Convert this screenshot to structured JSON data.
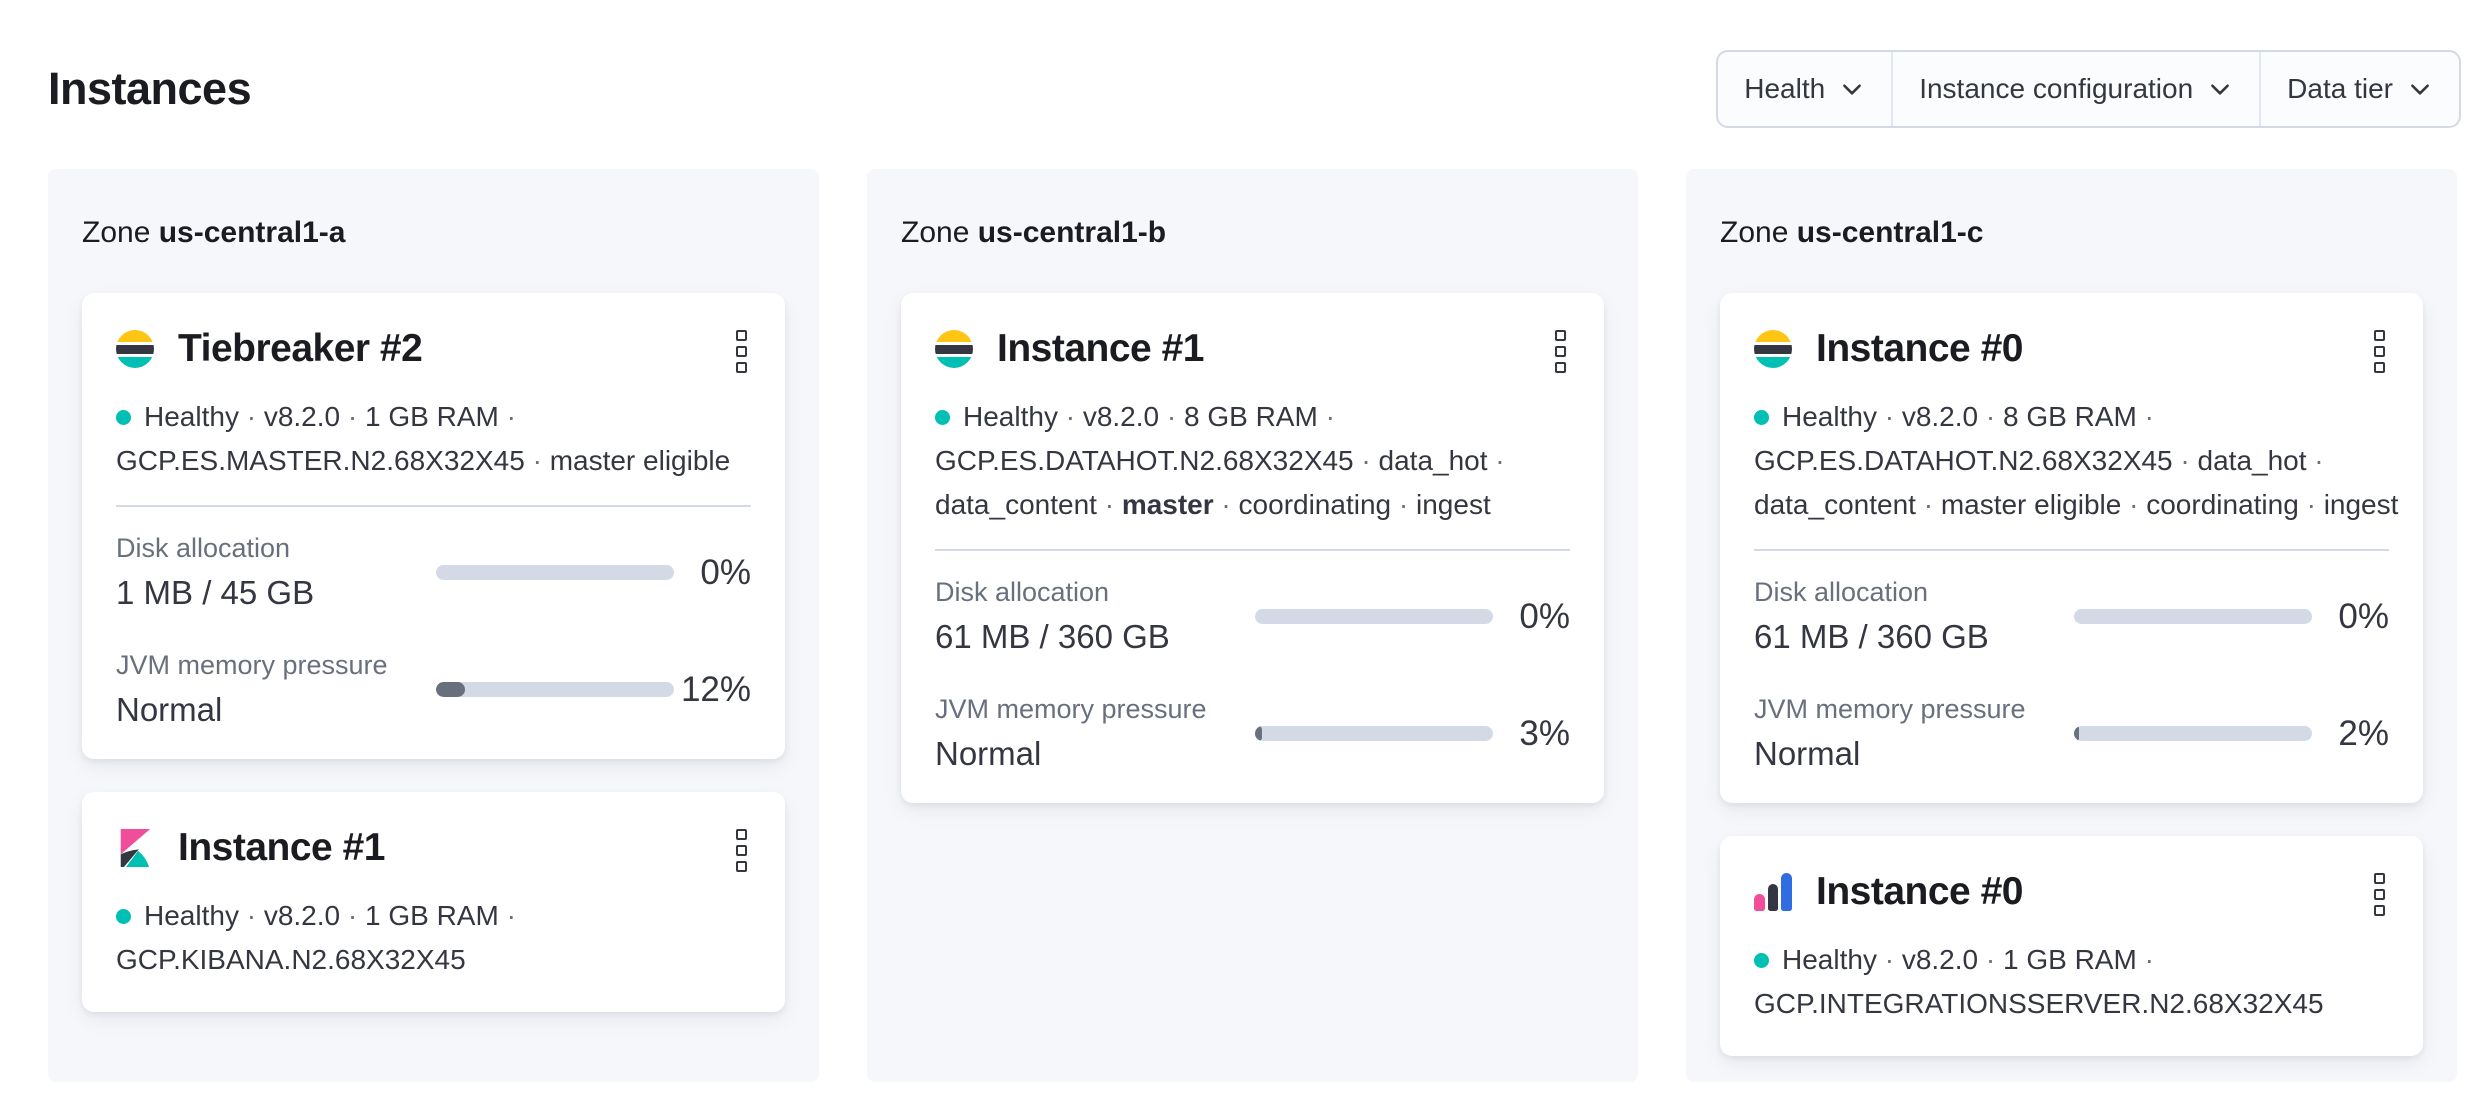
{
  "page": {
    "title": "Instances"
  },
  "filters": [
    {
      "id": "health",
      "label": "Health"
    },
    {
      "id": "instance-configuration",
      "label": "Instance configuration"
    },
    {
      "id": "data-tier",
      "label": "Data tier"
    }
  ],
  "colors": {
    "health_ok": "#00BFB3",
    "logo_yellow": "#FEC514",
    "logo_dark": "#343741",
    "logo_teal": "#00BFB3",
    "logo_pink": "#F04E98",
    "logo_blue": "#2F6DE0",
    "bar_track": "#D3DAE6",
    "bar_fill": "#69707D",
    "zone_panel_bg": "#F5F7FA"
  },
  "zones": [
    {
      "label": "Zone",
      "name": "us-central1-a",
      "cards": [
        {
          "logo": "elasticsearch",
          "title": "Tiebreaker #2",
          "meta_lines": [
            [
              {
                "t": "Healthy"
              },
              {
                "t": " · ",
                "sep": true
              },
              {
                "t": "v8.2.0"
              },
              {
                "t": " · ",
                "sep": true
              },
              {
                "t": "1 GB RAM"
              },
              {
                "t": " · ",
                "sep": true
              }
            ],
            [
              {
                "t": "GCP.ES.MASTER.N2.68X32X45"
              },
              {
                "t": " · ",
                "sep": true
              },
              {
                "t": "master eligible"
              }
            ]
          ],
          "metrics": [
            {
              "label": "Disk allocation",
              "value": "1 MB / 45 GB",
              "percent": 0,
              "percent_label": "0%"
            },
            {
              "label": "JVM memory pressure",
              "value": "Normal",
              "percent": 12,
              "percent_label": "12%"
            }
          ]
        },
        {
          "logo": "kibana",
          "title": "Instance #1",
          "meta_lines": [
            [
              {
                "t": "Healthy"
              },
              {
                "t": " · ",
                "sep": true
              },
              {
                "t": "v8.2.0"
              },
              {
                "t": " · ",
                "sep": true
              },
              {
                "t": "1 GB RAM"
              },
              {
                "t": " · ",
                "sep": true
              }
            ],
            [
              {
                "t": "GCP.KIBANA.N2.68X32X45"
              }
            ]
          ],
          "metrics": []
        }
      ]
    },
    {
      "label": "Zone",
      "name": "us-central1-b",
      "cards": [
        {
          "logo": "elasticsearch",
          "title": "Instance #1",
          "meta_lines": [
            [
              {
                "t": "Healthy"
              },
              {
                "t": " · ",
                "sep": true
              },
              {
                "t": "v8.2.0"
              },
              {
                "t": " · ",
                "sep": true
              },
              {
                "t": "8 GB RAM"
              },
              {
                "t": " · ",
                "sep": true
              }
            ],
            [
              {
                "t": "GCP.ES.DATAHOT.N2.68X32X45"
              },
              {
                "t": " · ",
                "sep": true
              },
              {
                "t": "data_hot"
              },
              {
                "t": " · ",
                "sep": true
              }
            ],
            [
              {
                "t": "data_content"
              },
              {
                "t": " · ",
                "sep": true
              },
              {
                "t": "master",
                "b": true
              },
              {
                "t": " · ",
                "sep": true
              },
              {
                "t": "coordinating"
              },
              {
                "t": " · ",
                "sep": true
              },
              {
                "t": "ingest"
              }
            ]
          ],
          "metrics": [
            {
              "label": "Disk allocation",
              "value": "61 MB / 360 GB",
              "percent": 0,
              "percent_label": "0%"
            },
            {
              "label": "JVM memory pressure",
              "value": "Normal",
              "percent": 3,
              "percent_label": "3%"
            }
          ]
        }
      ]
    },
    {
      "label": "Zone",
      "name": "us-central1-c",
      "cards": [
        {
          "logo": "elasticsearch",
          "title": "Instance #0",
          "meta_lines": [
            [
              {
                "t": "Healthy"
              },
              {
                "t": " · ",
                "sep": true
              },
              {
                "t": "v8.2.0"
              },
              {
                "t": " · ",
                "sep": true
              },
              {
                "t": "8 GB RAM"
              },
              {
                "t": " · ",
                "sep": true
              }
            ],
            [
              {
                "t": "GCP.ES.DATAHOT.N2.68X32X45"
              },
              {
                "t": " · ",
                "sep": true
              },
              {
                "t": "data_hot"
              },
              {
                "t": " · ",
                "sep": true
              }
            ],
            [
              {
                "t": "data_content"
              },
              {
                "t": " · ",
                "sep": true
              },
              {
                "t": "master eligible"
              },
              {
                "t": " · ",
                "sep": true
              },
              {
                "t": "coordinating"
              },
              {
                "t": " · ",
                "sep": true
              },
              {
                "t": "ingest"
              }
            ]
          ],
          "metrics": [
            {
              "label": "Disk allocation",
              "value": "61 MB / 360 GB",
              "percent": 0,
              "percent_label": "0%"
            },
            {
              "label": "JVM memory pressure",
              "value": "Normal",
              "percent": 2,
              "percent_label": "2%"
            }
          ]
        },
        {
          "logo": "integrations-server",
          "title": "Instance #0",
          "meta_lines": [
            [
              {
                "t": "Healthy"
              },
              {
                "t": " · ",
                "sep": true
              },
              {
                "t": "v8.2.0"
              },
              {
                "t": " · ",
                "sep": true
              },
              {
                "t": "1 GB RAM"
              },
              {
                "t": " · ",
                "sep": true
              }
            ],
            [
              {
                "t": "GCP.INTEGRATIONSSERVER.N2.68X32X45"
              }
            ]
          ],
          "metrics": []
        }
      ]
    }
  ]
}
